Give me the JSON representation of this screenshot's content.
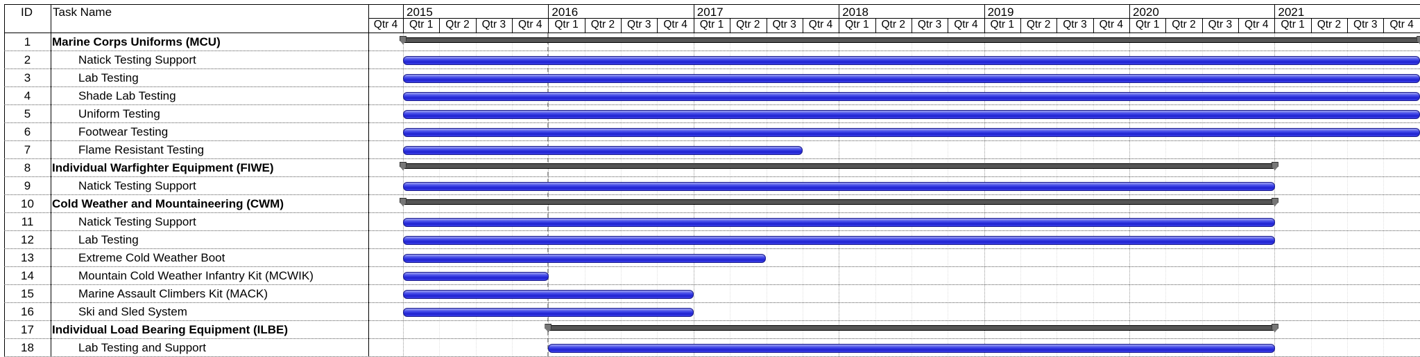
{
  "header": {
    "id_label": "ID",
    "name_label": "Task Name"
  },
  "timescale": {
    "first_quarter_label": "Qtr 4",
    "years": [
      "2015",
      "2016",
      "2017",
      "2018",
      "2019",
      "2020",
      "2021"
    ],
    "quarters": [
      "Qtr 1",
      "Qtr 2",
      "Qtr 3",
      "Qtr 4"
    ]
  },
  "colors": {
    "task_bar": "#2a2fdc",
    "summary_bar": "#555555"
  },
  "tasks": [
    {
      "id": "1",
      "name": "Marine Corps Uniforms (MCU)",
      "summary": true,
      "start": "2015-01-01",
      "end": "2021-12-31"
    },
    {
      "id": "2",
      "name": "Natick Testing Support",
      "summary": false,
      "start": "2015-01-01",
      "end": "2021-12-31"
    },
    {
      "id": "3",
      "name": "Lab Testing",
      "summary": false,
      "start": "2015-01-01",
      "end": "2021-12-31"
    },
    {
      "id": "4",
      "name": "Shade Lab Testing",
      "summary": false,
      "start": "2015-01-01",
      "end": "2021-12-31"
    },
    {
      "id": "5",
      "name": "Uniform Testing",
      "summary": false,
      "start": "2015-01-01",
      "end": "2021-12-31"
    },
    {
      "id": "6",
      "name": "Footwear Testing",
      "summary": false,
      "start": "2015-01-01",
      "end": "2021-12-31"
    },
    {
      "id": "7",
      "name": "Flame Resistant Testing",
      "summary": false,
      "start": "2015-01-01",
      "end": "2017-09-30"
    },
    {
      "id": "8",
      "name": "Individual Warfighter Equipment (FIWE)",
      "summary": true,
      "start": "2015-01-01",
      "end": "2020-12-31"
    },
    {
      "id": "9",
      "name": "Natick Testing Support",
      "summary": false,
      "start": "2015-01-01",
      "end": "2020-12-31"
    },
    {
      "id": "10",
      "name": "Cold Weather and Mountaineering (CWM)",
      "summary": true,
      "start": "2015-01-01",
      "end": "2020-12-31"
    },
    {
      "id": "11",
      "name": "Natick Testing Support",
      "summary": false,
      "start": "2015-01-01",
      "end": "2020-12-31"
    },
    {
      "id": "12",
      "name": "Lab Testing",
      "summary": false,
      "start": "2015-01-01",
      "end": "2020-12-31"
    },
    {
      "id": "13",
      "name": "Extreme Cold Weather Boot",
      "summary": false,
      "start": "2015-01-01",
      "end": "2017-06-30"
    },
    {
      "id": "14",
      "name": "Mountain Cold Weather Infantry Kit (MCWIK)",
      "summary": false,
      "start": "2015-01-01",
      "end": "2015-12-31"
    },
    {
      "id": "15",
      "name": "Marine Assault Climbers Kit (MACK)",
      "summary": false,
      "start": "2015-01-01",
      "end": "2016-12-31"
    },
    {
      "id": "16",
      "name": "Ski and Sled System",
      "summary": false,
      "start": "2015-01-01",
      "end": "2016-12-31"
    },
    {
      "id": "17",
      "name": "Individual Load Bearing Equipment (ILBE)",
      "summary": true,
      "start": "2016-01-01",
      "end": "2020-12-31"
    },
    {
      "id": "18",
      "name": "Lab Testing and Support",
      "summary": false,
      "start": "2016-01-01",
      "end": "2020-12-31"
    }
  ]
}
